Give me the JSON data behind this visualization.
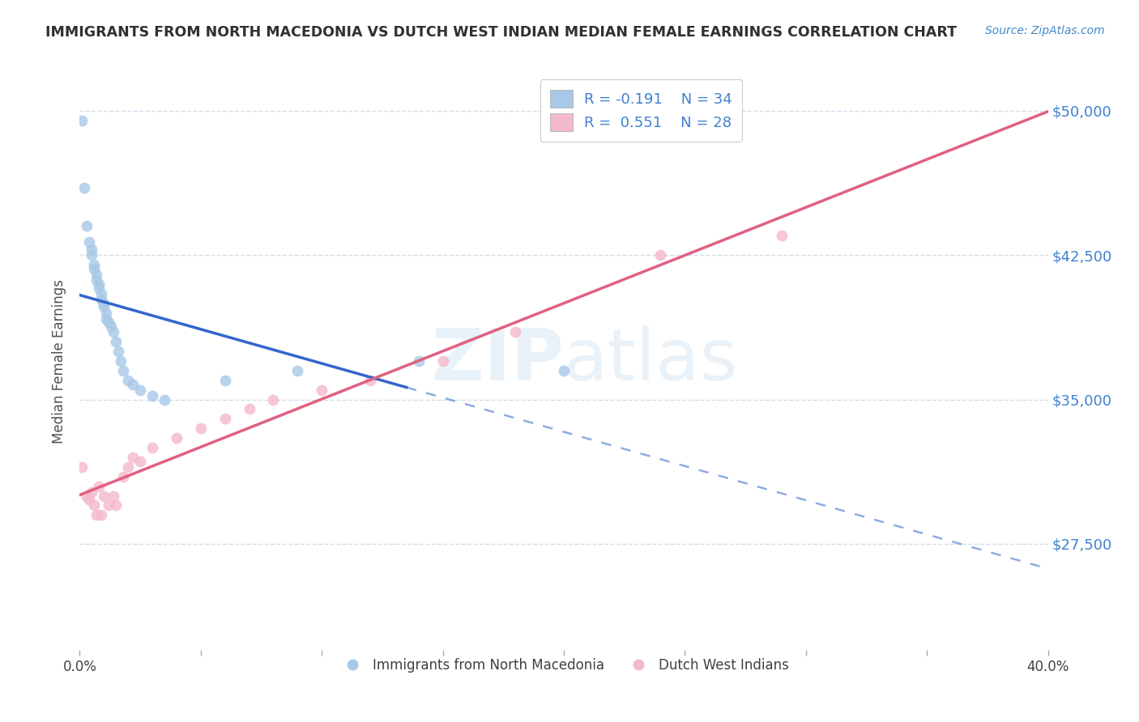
{
  "title": "IMMIGRANTS FROM NORTH MACEDONIA VS DUTCH WEST INDIAN MEDIAN FEMALE EARNINGS CORRELATION CHART",
  "source": "Source: ZipAtlas.com",
  "ylabel": "Median Female Earnings",
  "xlim": [
    0.0,
    0.4
  ],
  "ylim": [
    22000,
    52000
  ],
  "yticks": [
    27500,
    35000,
    42500,
    50000
  ],
  "ytick_labels": [
    "$27,500",
    "$35,000",
    "$42,500",
    "$50,000"
  ],
  "blue_r": -0.191,
  "blue_n": 34,
  "pink_r": 0.551,
  "pink_n": 28,
  "blue_color": "#a8c8e8",
  "pink_color": "#f4b8cc",
  "blue_line_color": "#3366cc",
  "pink_line_color": "#e06080",
  "blue_scatter_x": [
    0.001,
    0.002,
    0.003,
    0.004,
    0.005,
    0.005,
    0.006,
    0.006,
    0.007,
    0.007,
    0.008,
    0.008,
    0.009,
    0.009,
    0.01,
    0.01,
    0.011,
    0.011,
    0.012,
    0.013,
    0.014,
    0.015,
    0.016,
    0.017,
    0.018,
    0.02,
    0.022,
    0.025,
    0.03,
    0.035,
    0.06,
    0.09,
    0.14,
    0.2
  ],
  "blue_scatter_y": [
    49500,
    46000,
    44000,
    43200,
    42800,
    42500,
    42000,
    41800,
    41500,
    41200,
    41000,
    40800,
    40500,
    40200,
    40000,
    39800,
    39500,
    39200,
    39000,
    38800,
    38500,
    38000,
    37500,
    37000,
    36500,
    36000,
    35800,
    35500,
    35200,
    35000,
    36000,
    36500,
    37000,
    36500
  ],
  "pink_scatter_x": [
    0.001,
    0.003,
    0.004,
    0.005,
    0.006,
    0.007,
    0.008,
    0.009,
    0.01,
    0.012,
    0.014,
    0.015,
    0.018,
    0.02,
    0.022,
    0.025,
    0.03,
    0.04,
    0.05,
    0.06,
    0.07,
    0.08,
    0.1,
    0.12,
    0.15,
    0.18,
    0.24,
    0.29
  ],
  "pink_scatter_y": [
    31500,
    30000,
    29800,
    30200,
    29500,
    29000,
    30500,
    29000,
    30000,
    29500,
    30000,
    29500,
    31000,
    31500,
    32000,
    31800,
    32500,
    33000,
    33500,
    34000,
    34500,
    35000,
    35500,
    36000,
    37000,
    38500,
    42500,
    43500
  ],
  "background_color": "#ffffff",
  "grid_color": "#c8d8e8",
  "title_color": "#303030",
  "axis_label_color": "#505050",
  "tick_color_right": "#4080d0",
  "tick_color_x": "#4080d0"
}
